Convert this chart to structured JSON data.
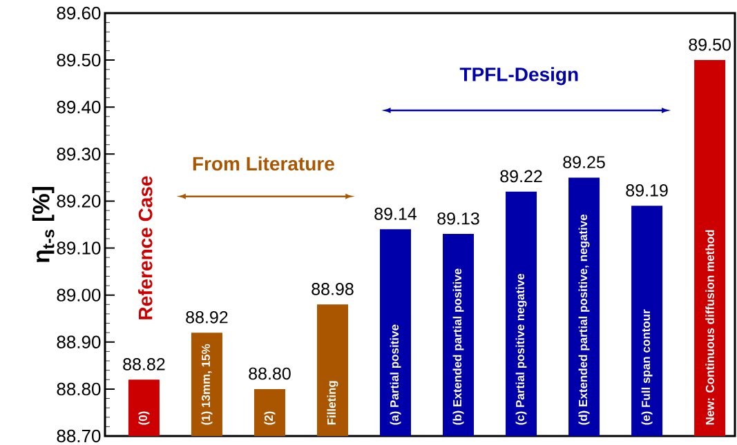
{
  "chart_data": {
    "type": "bar",
    "ylabel": "η$_{t-s}$ [%]",
    "categories": [
      "(0)",
      "(1) 13mm, 15%",
      "(2)",
      "Filleting",
      "(a) Partial positive",
      "(b) Extended partial positive",
      "(c) Partial positive negative",
      "(d) Extended partial positive, negative",
      "(e) Full span contour",
      "New: Continuous diffusion method"
    ],
    "values": [
      88.82,
      88.92,
      88.8,
      88.98,
      89.14,
      89.13,
      89.22,
      89.25,
      89.19,
      89.5
    ],
    "value_labels": [
      "88.82",
      "88.92",
      "88.80",
      "88.98",
      "89.14",
      "89.13",
      "89.22",
      "89.25",
      "89.19",
      "89.50"
    ],
    "colors": [
      "#cc0000",
      "#aa5500",
      "#aa5500",
      "#aa5500",
      "#0000aa",
      "#0000aa",
      "#0000aa",
      "#0000aa",
      "#0000aa",
      "#cc0000"
    ],
    "ylim": [
      88.7,
      89.6
    ],
    "yticks": [
      {
        "value": 88.7,
        "label": "88.70"
      },
      {
        "value": 88.8,
        "label": "88.80"
      },
      {
        "value": 88.9,
        "label": "88.90"
      },
      {
        "value": 89.0,
        "label": "89.00"
      },
      {
        "value": 89.1,
        "label": "89.10"
      },
      {
        "value": 89.2,
        "label": "89.20"
      },
      {
        "value": 89.3,
        "label": "89.30"
      },
      {
        "value": 89.4,
        "label": "89.40"
      },
      {
        "value": 89.5,
        "label": "89.50"
      },
      {
        "value": 89.6,
        "label": "89.60"
      }
    ],
    "annotations": [
      "Reference Case",
      "From Literature",
      "TPFL-Design"
    ],
    "grid": false
  }
}
